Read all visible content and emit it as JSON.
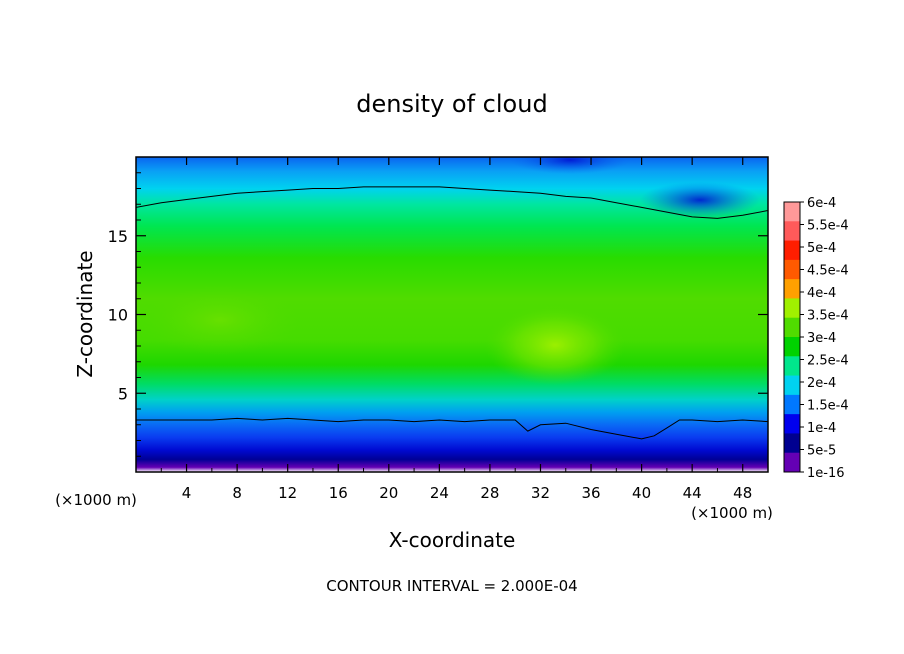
{
  "chart_data": {
    "type": "heatmap",
    "title": "density of cloud",
    "xlabel": "X-coordinate",
    "ylabel": "Z-coordinate",
    "x_unit_left": "(×1000 m)",
    "x_unit_right": "(×1000 m)",
    "footer": "CONTOUR INTERVAL = 2.000E-04",
    "xlim": [
      0,
      50
    ],
    "ylim": [
      0,
      20
    ],
    "x_ticks": [
      4,
      8,
      12,
      16,
      20,
      24,
      28,
      32,
      36,
      40,
      44,
      48
    ],
    "y_ticks": [
      5,
      10,
      15
    ],
    "x_tick_labels": [
      "4",
      "8",
      "12",
      "16",
      "20",
      "24",
      "28",
      "32",
      "36",
      "40",
      "44",
      "48"
    ],
    "y_tick_labels": [
      "5",
      "10",
      "15"
    ],
    "colorbar": {
      "labels": [
        "6e-4",
        "5.5e-4",
        "5e-4",
        "4.5e-4",
        "4e-4",
        "3.5e-4",
        "3e-4",
        "2.5e-4",
        "2e-4",
        "1.5e-4",
        "1e-4",
        "5e-5",
        "1e-16"
      ],
      "colors": [
        "#ff9999",
        "#ff5a5a",
        "#ff1e00",
        "#ff5a00",
        "#ffa000",
        "#a0f000",
        "#50dc00",
        "#00d200",
        "#00e68c",
        "#00d2f0",
        "#0078ff",
        "#0000ee",
        "#000090",
        "#6400b4"
      ]
    },
    "contour_lines": [
      {
        "name": "upper",
        "x": [
          0,
          2,
          4,
          6,
          8,
          10,
          12,
          14,
          16,
          18,
          20,
          22,
          24,
          26,
          28,
          30,
          32,
          34,
          36,
          38,
          40,
          42,
          44,
          46,
          48,
          50
        ],
        "z": [
          16.8,
          17.1,
          17.3,
          17.5,
          17.7,
          17.8,
          17.9,
          18.0,
          18.0,
          18.1,
          18.1,
          18.1,
          18.1,
          18.0,
          17.9,
          17.8,
          17.7,
          17.5,
          17.4,
          17.1,
          16.8,
          16.5,
          16.2,
          16.1,
          16.3,
          16.6
        ]
      },
      {
        "name": "lower",
        "x": [
          0,
          2,
          4,
          6,
          8,
          10,
          12,
          14,
          16,
          18,
          20,
          22,
          24,
          26,
          28,
          30,
          31,
          32,
          34,
          36,
          38,
          40,
          41,
          42,
          43,
          44,
          46,
          48,
          50
        ],
        "z": [
          3.3,
          3.3,
          3.3,
          3.3,
          3.4,
          3.3,
          3.4,
          3.3,
          3.2,
          3.3,
          3.3,
          3.2,
          3.3,
          3.2,
          3.3,
          3.3,
          2.6,
          3.0,
          3.1,
          2.7,
          2.4,
          2.1,
          2.3,
          2.8,
          3.3,
          3.3,
          3.2,
          3.3,
          3.2
        ]
      }
    ]
  }
}
